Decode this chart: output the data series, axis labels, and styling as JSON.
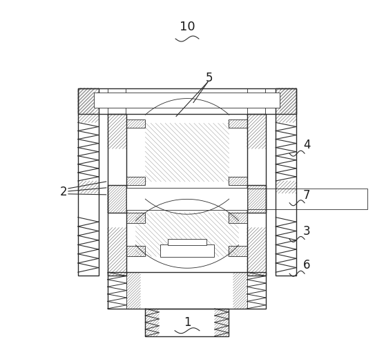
{
  "bg_color": "#ffffff",
  "line_color": "#2a2a2a",
  "label_color": "#1a1a1a",
  "fig_width": 5.43,
  "fig_height": 5.01,
  "dpi": 100
}
